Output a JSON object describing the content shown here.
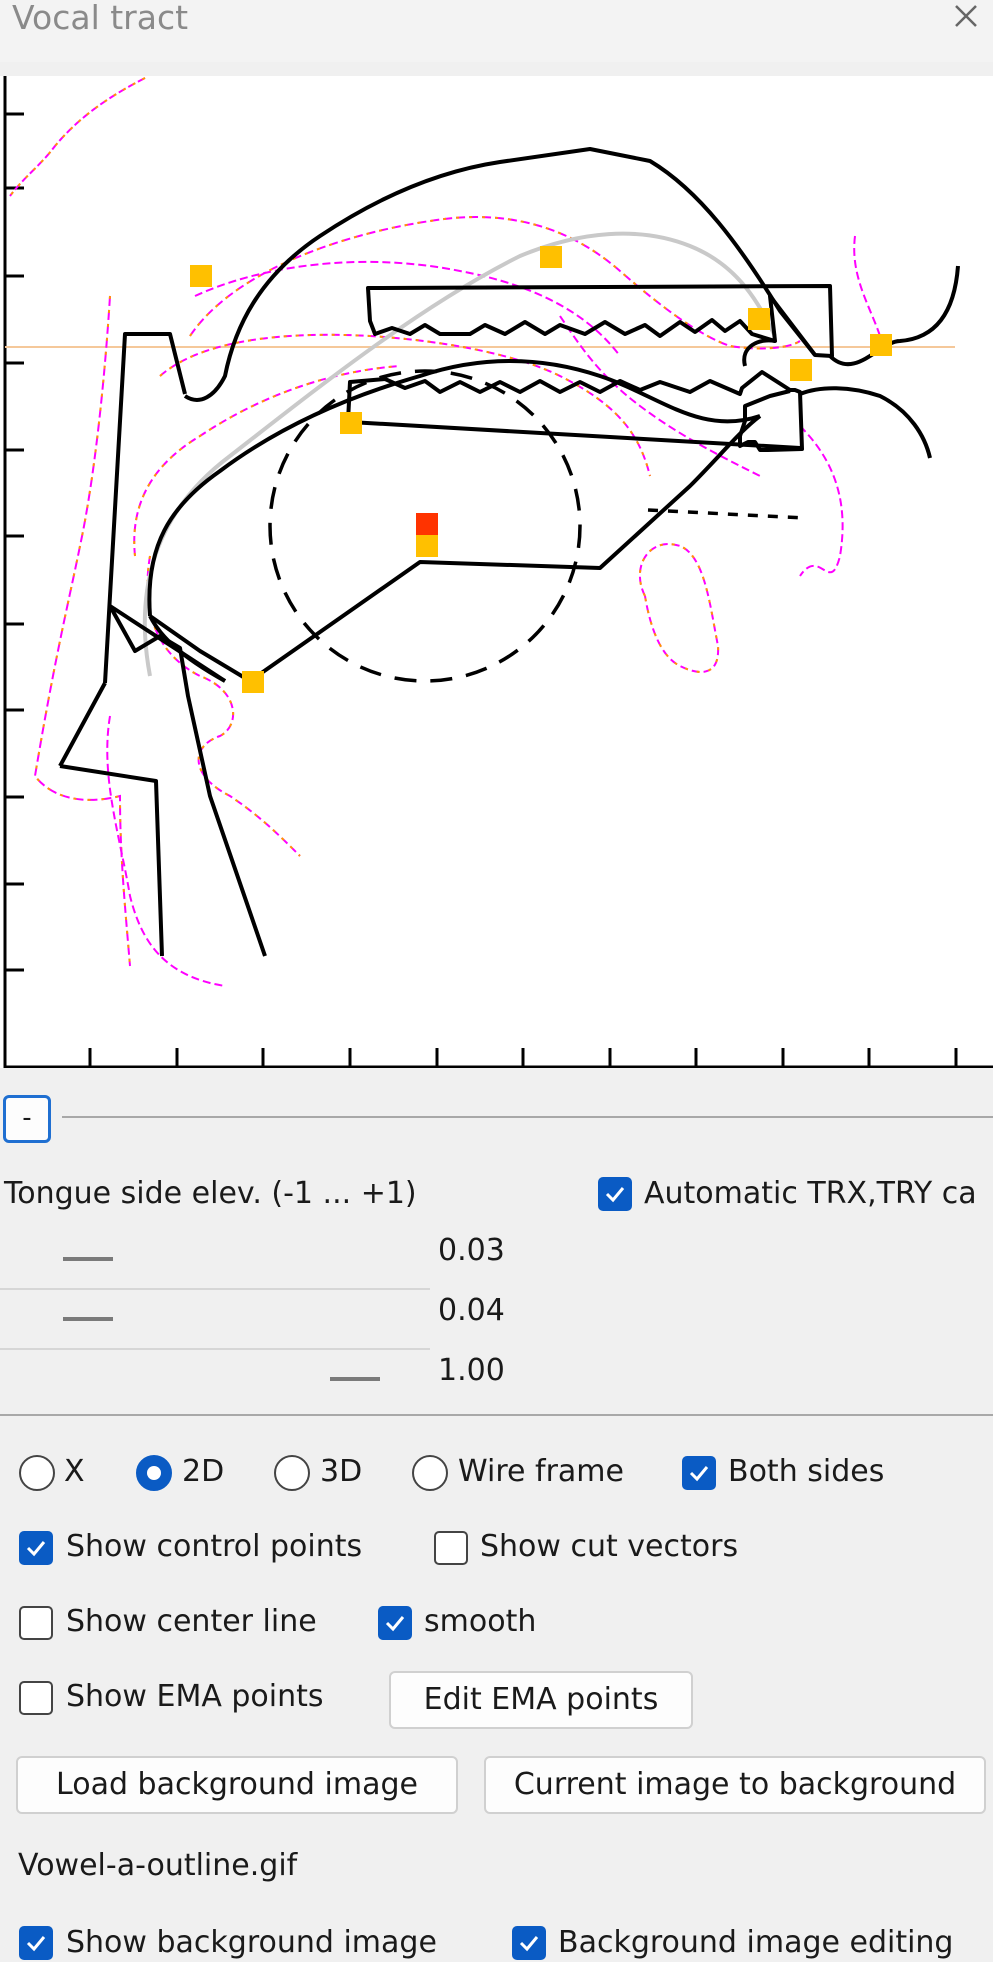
{
  "window": {
    "title": "Vocal tract"
  },
  "icons": {
    "close": "close-icon",
    "check": "checkmark-icon"
  },
  "colors": {
    "accent": "#0a5bc4",
    "control_point": "#ffc000",
    "selected_point": "#ff3300",
    "outline_magenta": "#ff00ff",
    "outline_orange": "#ff9900"
  },
  "collapse_label": "-",
  "tongue": {
    "label": "Tongue side elev. (-1 ... +1)",
    "sliders": [
      {
        "value_text": "0.03",
        "value": 0.03
      },
      {
        "value_text": "0.04",
        "value": 0.04
      },
      {
        "value_text": "1.00",
        "value": 1.0
      }
    ]
  },
  "auto_trx": {
    "label": "Automatic TRX,TRY ca",
    "checked": true
  },
  "view_modes": {
    "options": [
      "X",
      "2D",
      "3D",
      "Wire frame"
    ],
    "selected": "2D"
  },
  "both_sides": {
    "label": "Both sides",
    "checked": true
  },
  "options": {
    "show_control_points": {
      "label": "Show control points",
      "checked": true
    },
    "show_cut_vectors": {
      "label": "Show cut vectors",
      "checked": false
    },
    "show_center_line": {
      "label": "Show center line",
      "checked": false
    },
    "smooth": {
      "label": "smooth",
      "checked": true
    },
    "show_ema_points": {
      "label": "Show EMA points",
      "checked": false
    }
  },
  "buttons": {
    "edit_ema": "Edit EMA points",
    "load_bg": "Load background image",
    "current_to_bg": "Current image to background"
  },
  "background_file": "Vowel-a-outline.gif",
  "background": {
    "show": {
      "label": "Show background image",
      "checked": true
    },
    "editing": {
      "label": "Background image editing",
      "checked": true
    }
  }
}
